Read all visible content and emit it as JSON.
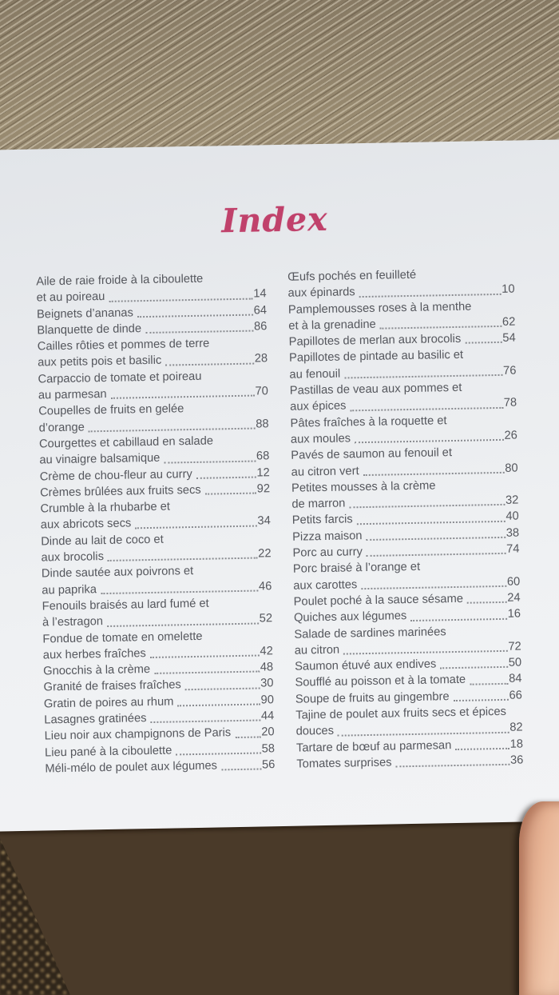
{
  "title": "Index",
  "colors": {
    "title_pink": "#c0416b",
    "text_gray": "#55575d"
  },
  "scene": {
    "elements": [
      "wood-table-top",
      "wood-table-bottom",
      "rattan-chair",
      "book-page",
      "finger"
    ]
  },
  "index": {
    "left_column": [
      {
        "lines": [
          "Aile de raie froide à la ciboulette",
          "et au poireau"
        ],
        "page_num": "14"
      },
      {
        "lines": [
          "Beignets d’ananas"
        ],
        "page_num": "64"
      },
      {
        "lines": [
          "Blanquette de dinde"
        ],
        "page_num": "86"
      },
      {
        "lines": [
          "Cailles rôties et pommes de terre",
          "aux petits pois et basilic"
        ],
        "page_num": "28"
      },
      {
        "lines": [
          "Carpaccio de tomate et poireau",
          "au parmesan"
        ],
        "page_num": "70"
      },
      {
        "lines": [
          "Coupelles de fruits en gelée",
          "d’orange"
        ],
        "page_num": "88"
      },
      {
        "lines": [
          "Courgettes et cabillaud en salade",
          "au vinaigre balsamique"
        ],
        "page_num": "68"
      },
      {
        "lines": [
          "Crème de chou-fleur au curry"
        ],
        "page_num": "12"
      },
      {
        "lines": [
          "Crèmes brûlées aux fruits secs"
        ],
        "page_num": "92"
      },
      {
        "lines": [
          "Crumble à la rhubarbe et",
          "aux abricots secs"
        ],
        "page_num": "34"
      },
      {
        "lines": [
          "Dinde au lait de coco et",
          "aux brocolis"
        ],
        "page_num": "22"
      },
      {
        "lines": [
          "Dinde sautée aux poivrons et",
          "au paprika"
        ],
        "page_num": "46"
      },
      {
        "lines": [
          "Fenouils braisés au lard fumé et",
          "à l’estragon"
        ],
        "page_num": "52"
      },
      {
        "lines": [
          "Fondue de tomate en omelette",
          "aux herbes fraîches"
        ],
        "page_num": "42"
      },
      {
        "lines": [
          "Gnocchis à la crème"
        ],
        "page_num": "48"
      },
      {
        "lines": [
          "Granité de fraises fraîches"
        ],
        "page_num": "30"
      },
      {
        "lines": [
          "Gratin de poires au rhum"
        ],
        "page_num": "90"
      },
      {
        "lines": [
          "Lasagnes gratinées"
        ],
        "page_num": "44"
      },
      {
        "lines": [
          "Lieu noir aux champignons de Paris"
        ],
        "page_num": "20"
      },
      {
        "lines": [
          "Lieu pané à la ciboulette"
        ],
        "page_num": "58"
      },
      {
        "lines": [
          "Méli-mélo de poulet aux légumes"
        ],
        "page_num": "56"
      }
    ],
    "right_column": [
      {
        "lines": [
          "Œufs pochés en feuilleté",
          "aux épinards"
        ],
        "page_num": "10"
      },
      {
        "lines": [
          "Pamplemousses roses à la menthe",
          "et à la grenadine"
        ],
        "page_num": "62"
      },
      {
        "lines": [
          "Papillotes de merlan aux brocolis"
        ],
        "page_num": "54"
      },
      {
        "lines": [
          "Papillotes de pintade au basilic et",
          "au fenouil"
        ],
        "page_num": "76"
      },
      {
        "lines": [
          "Pastillas de veau aux pommes et",
          "aux épices"
        ],
        "page_num": "78"
      },
      {
        "lines": [
          "Pâtes fraîches à la roquette et",
          "aux moules"
        ],
        "page_num": "26"
      },
      {
        "lines": [
          "Pavés de saumon au fenouil et",
          "au citron vert"
        ],
        "page_num": "80"
      },
      {
        "lines": [
          "Petites mousses à la crème",
          "de marron"
        ],
        "page_num": "32"
      },
      {
        "lines": [
          "Petits farcis"
        ],
        "page_num": "40"
      },
      {
        "lines": [
          "Pizza maison"
        ],
        "page_num": "38"
      },
      {
        "lines": [
          "Porc au curry"
        ],
        "page_num": "74"
      },
      {
        "lines": [
          "Porc braisé à l’orange et",
          "aux carottes"
        ],
        "page_num": "60"
      },
      {
        "lines": [
          "Poulet poché à la sauce sésame"
        ],
        "page_num": "24"
      },
      {
        "lines": [
          "Quiches aux légumes"
        ],
        "page_num": "16"
      },
      {
        "lines": [
          "Salade de sardines marinées",
          "au citron"
        ],
        "page_num": "72"
      },
      {
        "lines": [
          "Saumon étuvé aux endives"
        ],
        "page_num": "50"
      },
      {
        "lines": [
          "Soufflé au poisson et à la tomate"
        ],
        "page_num": "84"
      },
      {
        "lines": [
          "Soupe de fruits au gingembre"
        ],
        "page_num": "66"
      },
      {
        "lines": [
          "Tajine de poulet aux fruits secs et épices",
          "douces"
        ],
        "page_num": "82"
      },
      {
        "lines": [
          "Tartare de bœuf au parmesan"
        ],
        "page_num": "18"
      },
      {
        "lines": [
          "Tomates surprises"
        ],
        "page_num": "36"
      }
    ]
  }
}
